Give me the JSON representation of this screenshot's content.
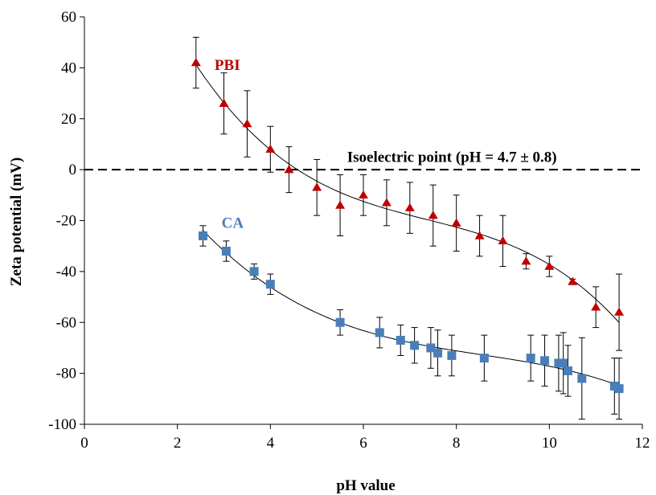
{
  "chart_data": {
    "type": "scatter",
    "title": "",
    "xlabel": "pH value",
    "ylabel": "Zeta potential (mV)",
    "xlim": [
      0,
      12
    ],
    "ylim": [
      -100,
      60
    ],
    "xticks": [
      0,
      2,
      4,
      6,
      8,
      10,
      12
    ],
    "yticks": [
      -100,
      -80,
      -60,
      -40,
      -20,
      0,
      20,
      40,
      60
    ],
    "grid": false,
    "legend": "none",
    "reference_line": {
      "y": 0,
      "style": "dashed",
      "label": "Isoelectric point (pH = 4.7 ± 0.8)"
    },
    "series": [
      {
        "name": "PBI",
        "marker": "triangle",
        "color": "#C00000",
        "trendline": "polynomial",
        "x": [
          2.4,
          3.0,
          3.5,
          4.0,
          4.4,
          5.0,
          5.5,
          6.0,
          6.5,
          7.0,
          7.5,
          8.0,
          8.5,
          9.0,
          9.5,
          10.0,
          10.5,
          11.0,
          11.5
        ],
        "y": [
          42,
          26,
          18,
          8,
          0,
          -7,
          -14,
          -10,
          -13,
          -15,
          -18,
          -21,
          -26,
          -28,
          -36,
          -38,
          -44,
          -54,
          -56
        ],
        "err": [
          10,
          12,
          13,
          9,
          9,
          11,
          12,
          8,
          9,
          10,
          12,
          11,
          8,
          10,
          3,
          4,
          1,
          8,
          15
        ]
      },
      {
        "name": "CA",
        "marker": "square",
        "color": "#4A7EBB",
        "trendline": "polynomial",
        "x": [
          2.55,
          3.05,
          3.65,
          4.0,
          5.5,
          6.35,
          6.8,
          7.1,
          7.45,
          7.6,
          7.9,
          8.6,
          9.6,
          9.9,
          10.2,
          10.3,
          10.4,
          10.7,
          11.4,
          11.5
        ],
        "y": [
          -26,
          -32,
          -40,
          -45,
          -60,
          -64,
          -67,
          -69,
          -70,
          -72,
          -73,
          -74,
          -74,
          -75,
          -76,
          -76,
          -79,
          -82,
          -85,
          -86
        ],
        "err": [
          4,
          4,
          3,
          4,
          5,
          6,
          6,
          7,
          8,
          9,
          8,
          9,
          9,
          10,
          11,
          12,
          10,
          16,
          11,
          12
        ]
      }
    ],
    "annotations": [
      {
        "text": "PBI",
        "x": 2.8,
        "y": 41,
        "color": "#C00000"
      },
      {
        "text": "CA",
        "x": 2.95,
        "y": -21,
        "color": "#4A7EBB"
      },
      {
        "text": "Isoelectric point (pH = 4.7 ± 0.8)",
        "x": 5.65,
        "y": 5,
        "color": "#000000"
      }
    ]
  }
}
